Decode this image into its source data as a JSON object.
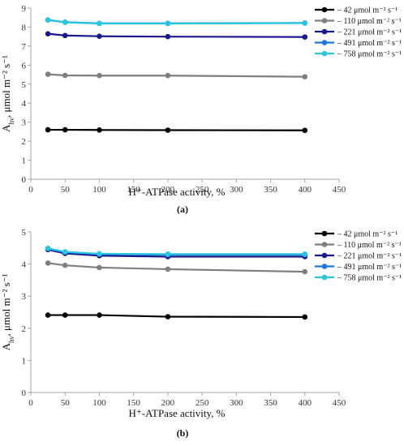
{
  "chart_data": [
    {
      "type": "line",
      "panel_label": "(a)",
      "xlabel": "H⁺-ATPase activity, %",
      "ylabel": "A_hν, μmol m⁻² s⁻¹",
      "xlim": [
        0,
        450
      ],
      "ylim": [
        0,
        9
      ],
      "xticks": [
        0,
        50,
        100,
        150,
        200,
        250,
        300,
        350,
        400,
        450
      ],
      "yticks": [
        0,
        1,
        2,
        3,
        4,
        5,
        6,
        7,
        8,
        9
      ],
      "grid": false,
      "legend_position": "top-right",
      "x": [
        25,
        50,
        100,
        200,
        400
      ],
      "series": [
        {
          "name": "42 μmol m⁻² s⁻¹",
          "color": "#000000",
          "values": [
            2.6,
            2.6,
            2.59,
            2.58,
            2.57
          ]
        },
        {
          "name": "110 μmol m⁻² s⁻¹",
          "color": "#7f7f7f",
          "values": [
            5.52,
            5.46,
            5.45,
            5.45,
            5.39
          ]
        },
        {
          "name": "221 μmol m⁻² s⁻¹",
          "color": "#1a1a8c",
          "values": [
            7.65,
            7.56,
            7.52,
            7.5,
            7.48
          ]
        },
        {
          "name": "491 μmol m⁻² s⁻¹",
          "color": "#1f78d6",
          "values": [
            8.38,
            8.26,
            8.2,
            8.2,
            8.22
          ]
        },
        {
          "name": "758 μmol m⁻² s⁻¹",
          "color": "#29c6e0",
          "values": [
            8.37,
            8.25,
            8.19,
            8.19,
            8.21
          ]
        }
      ]
    },
    {
      "type": "line",
      "panel_label": "(b)",
      "xlabel": "H⁺-ATPase activity, %",
      "ylabel": "A_hν, μmol m⁻² s⁻¹",
      "xlim": [
        0,
        450
      ],
      "ylim": [
        0,
        5
      ],
      "xticks": [
        0,
        50,
        100,
        150,
        200,
        250,
        300,
        350,
        400,
        450
      ],
      "yticks": [
        0,
        1,
        2,
        3,
        4,
        5
      ],
      "grid": false,
      "legend_position": "top-right",
      "x": [
        25,
        50,
        100,
        200,
        400
      ],
      "series": [
        {
          "name": "42 μmol m⁻² s⁻¹",
          "color": "#000000",
          "values": [
            2.41,
            2.41,
            2.41,
            2.36,
            2.35
          ]
        },
        {
          "name": "110 μmol m⁻² s⁻¹",
          "color": "#7f7f7f",
          "values": [
            4.03,
            3.96,
            3.89,
            3.84,
            3.76
          ]
        },
        {
          "name": "221 μmol m⁻² s⁻¹",
          "color": "#1a1a8c",
          "values": [
            4.45,
            4.33,
            4.26,
            4.23,
            4.23
          ]
        },
        {
          "name": "491 μmol m⁻² s⁻¹",
          "color": "#1f78d6",
          "values": [
            4.48,
            4.37,
            4.31,
            4.29,
            4.29
          ]
        },
        {
          "name": "758 μmol m⁻² s⁻¹",
          "color": "#29c6e0",
          "values": [
            4.49,
            4.38,
            4.32,
            4.31,
            4.31
          ]
        }
      ]
    }
  ]
}
